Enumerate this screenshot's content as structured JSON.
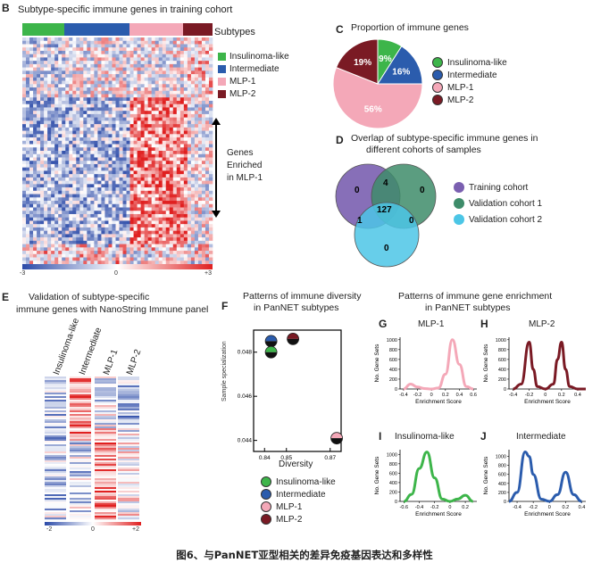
{
  "panels": {
    "B": {
      "letter": "B",
      "title": "Subtype-specific immune genes in training cohort",
      "legend_title": "Subtypes",
      "legend": [
        "Insulinoma-like",
        "Intermediate",
        "MLP-1",
        "MLP-2"
      ],
      "arrow_label": [
        "Genes",
        "Enriched",
        "in MLP-1"
      ],
      "scale": [
        "-3",
        "0",
        "+3"
      ]
    },
    "C": {
      "letter": "C",
      "title": "Proportion of immune genes",
      "legend": [
        "Insulinoma-like",
        "Intermediate",
        "MLP-1",
        "MLP-2"
      ]
    },
    "D": {
      "letter": "D",
      "title_line1": "Overlap of subtype-specific immune genes in",
      "title_line2": "different cohorts of samples",
      "legend": [
        "Training cohort",
        "Validation cohort 1",
        "Validation cohort 2"
      ],
      "numbers": {
        "training_only": "0",
        "train_val1": "4",
        "val1_only": "0",
        "train_val2": "1",
        "all": "127",
        "val1_val2": "0",
        "val2_only": "0"
      }
    },
    "E": {
      "letter": "E",
      "title_line1": "Validation of subtype-specific",
      "title_line2": "immune genes with NanoString Immune panel",
      "columns": [
        "Insulinoma-like",
        "Intermediate",
        "MLP-1",
        "MLP-2"
      ],
      "scale": [
        "-2",
        "0",
        "+2"
      ]
    },
    "F": {
      "letter": "F",
      "title_line1": "Patterns of immune diversity",
      "title_line2": "in PanNET subtypes",
      "ylabel": "Sample specialization",
      "xlabel": "Diversity",
      "yticks": [
        "0.048",
        "0.046",
        "0.044"
      ],
      "xticks": [
        "0.84",
        "0.85",
        "0.87"
      ],
      "legend": [
        "Insulinoma-like",
        "Intermediate",
        "MLP-1",
        "MLP-2"
      ]
    },
    "GJ": {
      "title_line1": "Patterns of immune gene enrichment",
      "title_line2": "in PanNET subtypes",
      "xlabel": "Enrichment Score",
      "ylabel": "No. Gene Sets"
    },
    "G": {
      "letter": "G",
      "title": "MLP-1"
    },
    "H": {
      "letter": "H",
      "title": "MLP-2"
    },
    "I": {
      "letter": "I",
      "title": "Insulinoma-like"
    },
    "J": {
      "letter": "J",
      "title": "Intermediate"
    }
  },
  "colors": {
    "insulinoma": "#3db54a",
    "intermediate": "#2b5cad",
    "mlp1": "#f4a8b8",
    "mlp2": "#7a1a24",
    "violet": "#7a5fb0",
    "green": "#3e8c6a",
    "cyan": "#4cc6e6"
  },
  "chart_data": [
    {
      "id": "C",
      "type": "pie",
      "categories": [
        "Insulinoma-like",
        "Intermediate",
        "MLP-1",
        "MLP-2"
      ],
      "values": [
        9,
        16,
        56,
        19
      ],
      "labels": [
        "9%",
        "16%",
        "56%",
        "19%"
      ]
    },
    {
      "id": "F",
      "type": "scatter",
      "series": [
        {
          "name": "Intermediate/Insulinoma-like",
          "x": [
            0.843
          ],
          "y": [
            0.0485
          ]
        },
        {
          "name": "Insulinoma-like/Intermediate",
          "x": [
            0.843
          ],
          "y": [
            0.048
          ]
        },
        {
          "name": "MLP-2/MLP-1",
          "x": [
            0.853
          ],
          "y": [
            0.0486
          ]
        },
        {
          "name": "MLP-1/MLP-2",
          "x": [
            0.873
          ],
          "y": [
            0.0441
          ]
        }
      ],
      "xlim": [
        0.835,
        0.875
      ],
      "ylim": [
        0.0435,
        0.049
      ]
    },
    {
      "id": "G",
      "type": "line",
      "x": [
        -0.4,
        -0.3,
        -0.2,
        -0.1,
        0,
        0.1,
        0.2,
        0.3,
        0.4,
        0.5,
        0.6
      ],
      "values": [
        0,
        100,
        40,
        10,
        0,
        20,
        300,
        1000,
        500,
        50,
        0
      ],
      "xticks": [
        "-0.4",
        "-0.2",
        "0",
        "0.2",
        "0.4",
        "0.6"
      ],
      "yticks": [
        "0",
        "200",
        "400",
        "600",
        "800",
        "1000"
      ],
      "ylim": [
        0,
        1050
      ],
      "xlim": [
        -0.45,
        0.65
      ]
    },
    {
      "id": "H",
      "type": "line",
      "x": [
        -0.4,
        -0.3,
        -0.2,
        -0.15,
        -0.1,
        0,
        0.1,
        0.15,
        0.2,
        0.25,
        0.3,
        0.4,
        0.5
      ],
      "values": [
        0,
        100,
        950,
        400,
        50,
        0,
        100,
        600,
        950,
        400,
        50,
        0,
        0
      ],
      "xticks": [
        "-0.4",
        "-0.2",
        "0",
        "0.2",
        "0.4"
      ],
      "yticks": [
        "0",
        "200",
        "400",
        "600",
        "800",
        "1000"
      ],
      "ylim": [
        0,
        1050
      ],
      "xlim": [
        -0.45,
        0.5
      ]
    },
    {
      "id": "I",
      "type": "line",
      "x": [
        -0.6,
        -0.5,
        -0.4,
        -0.3,
        -0.2,
        -0.1,
        0,
        0.1,
        0.2,
        0.3
      ],
      "values": [
        0,
        150,
        700,
        1050,
        500,
        50,
        0,
        50,
        130,
        0
      ],
      "xticks": [
        "-0.6",
        "-0.4",
        "-0.2",
        "0",
        "0.2"
      ],
      "yticks": [
        "0",
        "200",
        "400",
        "600",
        "800",
        "1000"
      ],
      "ylim": [
        0,
        1100
      ],
      "xlim": [
        -0.65,
        0.35
      ]
    },
    {
      "id": "J",
      "type": "line",
      "x": [
        -0.5,
        -0.4,
        -0.3,
        -0.25,
        -0.2,
        -0.1,
        0,
        0.1,
        0.2,
        0.3,
        0.4
      ],
      "values": [
        0,
        200,
        1100,
        1000,
        600,
        50,
        0,
        150,
        650,
        150,
        0
      ],
      "xticks": [
        "-0.4",
        "-0.2",
        "0",
        "0.2",
        "0.4"
      ],
      "yticks": [
        "0",
        "200",
        "400",
        "600",
        "800",
        "1000"
      ],
      "ylim": [
        0,
        1150
      ],
      "xlim": [
        -0.5,
        0.45
      ]
    }
  ],
  "caption": "图6、与PanNET亚型相关的差异免疫基因表达和多样性"
}
